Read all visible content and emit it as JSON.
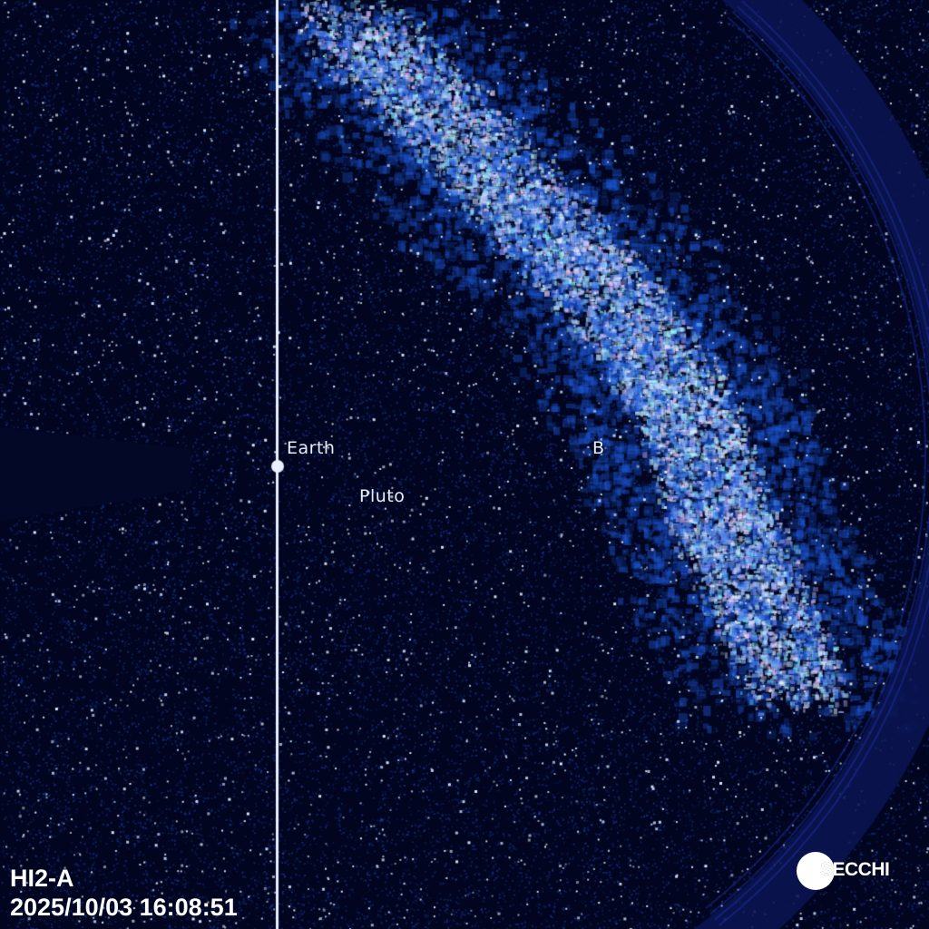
{
  "image": {
    "instrument": "HI2-A",
    "timestamp": "2025/10/03 16:08:51",
    "logo": "SECCHI",
    "labels": {
      "earth": "Earth",
      "pluto": "Pluto",
      "b": "B"
    },
    "colors": {
      "background": "#01051f",
      "milky_way": "#bfe0ff",
      "stars": "#ffffff",
      "tint": "#1a3cb0"
    }
  }
}
